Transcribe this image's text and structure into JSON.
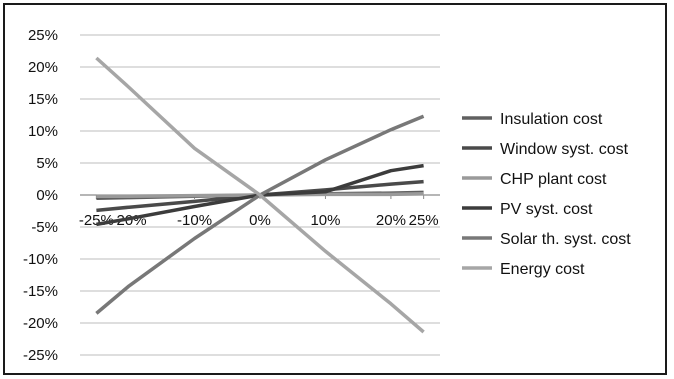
{
  "chart_data": {
    "type": "line",
    "title": "",
    "xlabel": "",
    "ylabel": "",
    "categories": [
      "-25%",
      "-20%",
      "-10%",
      "0%",
      "10%",
      "20%",
      "25%"
    ],
    "x_values": [
      -25,
      -20,
      -10,
      0,
      10,
      20,
      25
    ],
    "y_ticks": [
      "25%",
      "20%",
      "15%",
      "10%",
      "5%",
      "0%",
      "-5%",
      "-10%",
      "-15%",
      "-20%",
      "-25%"
    ],
    "ylim": [
      -25,
      25
    ],
    "grid": "horizontal",
    "legend_position": "right",
    "series": [
      {
        "name": "Insulation cost",
        "color": "#606060",
        "values": [
          -0.5,
          -0.4,
          -0.2,
          0,
          0.2,
          0.3,
          0.4
        ]
      },
      {
        "name": "Window syst. cost",
        "color": "#4a4a4a",
        "values": [
          -2.4,
          -1.9,
          -1.0,
          0,
          0.8,
          1.7,
          2.1
        ]
      },
      {
        "name": "CHP plant cost",
        "color": "#9a9a9a",
        "values": [
          -0.2,
          -0.2,
          -0.1,
          0,
          0.1,
          0.1,
          0.2
        ]
      },
      {
        "name": "PV syst. cost",
        "color": "#3c3c3c",
        "values": [
          -4.6,
          -3.7,
          -1.8,
          0,
          0.5,
          3.8,
          4.6
        ]
      },
      {
        "name": "Solar th. syst. cost",
        "color": "#787878",
        "values": [
          -18.5,
          -14.2,
          -6.8,
          0,
          5.5,
          10.2,
          12.3
        ]
      },
      {
        "name": "Energy cost",
        "color": "#a6a6a6",
        "values": [
          21.4,
          16.8,
          7.3,
          0,
          -8.8,
          -17.0,
          -21.4
        ]
      }
    ]
  }
}
